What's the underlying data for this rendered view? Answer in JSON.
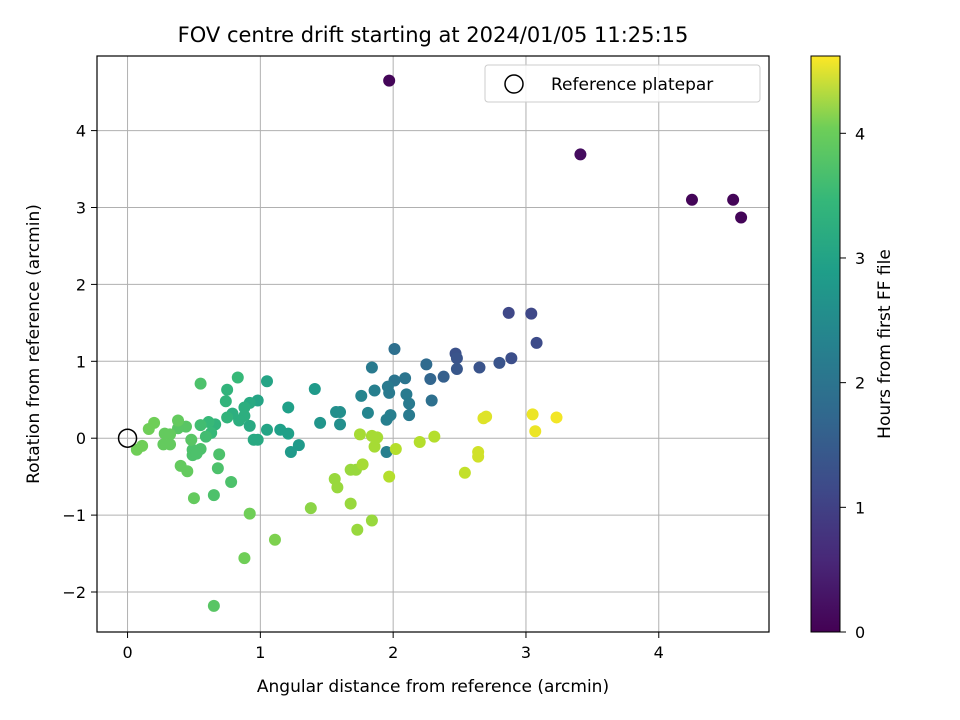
{
  "chart_data": {
    "type": "scatter",
    "title": "FOV centre drift starting at 2024/01/05 11:25:15",
    "xlabel": "Angular distance from reference (arcmin)",
    "ylabel": "Rotation from reference (arcmin)",
    "xlim": [
      -0.23,
      4.83
    ],
    "ylim": [
      -2.52,
      4.97
    ],
    "xticks": [
      0,
      1,
      2,
      3,
      4
    ],
    "yticks": [
      -2,
      -1,
      0,
      1,
      2,
      3,
      4
    ],
    "grid": true,
    "colormap": "viridis",
    "colorbar": {
      "label": "Hours from first FF file",
      "range": [
        0,
        4.62
      ],
      "ticks": [
        0,
        1,
        2,
        3,
        4
      ]
    },
    "legend": {
      "position": "top-right",
      "entries": [
        {
          "label": "Reference platepar",
          "marker": "open-circle"
        }
      ]
    },
    "reference_point": {
      "x": 0,
      "y": 0
    },
    "points": [
      {
        "x": 1.97,
        "y": 4.65,
        "h": 0.05
      },
      {
        "x": 3.41,
        "y": 3.69,
        "h": 0.15
      },
      {
        "x": 4.25,
        "y": 3.1,
        "h": 0.05
      },
      {
        "x": 4.56,
        "y": 3.1,
        "h": 0.05
      },
      {
        "x": 4.62,
        "y": 2.87,
        "h": 0.05
      },
      {
        "x": 2.87,
        "y": 1.63,
        "h": 1.0
      },
      {
        "x": 3.04,
        "y": 1.62,
        "h": 1.0
      },
      {
        "x": 3.08,
        "y": 1.24,
        "h": 1.05
      },
      {
        "x": 2.89,
        "y": 1.04,
        "h": 1.1
      },
      {
        "x": 2.8,
        "y": 0.98,
        "h": 1.2
      },
      {
        "x": 2.65,
        "y": 0.92,
        "h": 1.2
      },
      {
        "x": 2.47,
        "y": 1.1,
        "h": 1.15
      },
      {
        "x": 2.48,
        "y": 1.04,
        "h": 1.2
      },
      {
        "x": 2.48,
        "y": 0.9,
        "h": 1.25
      },
      {
        "x": 2.38,
        "y": 0.8,
        "h": 1.4
      },
      {
        "x": 2.28,
        "y": 0.77,
        "h": 1.5
      },
      {
        "x": 2.25,
        "y": 0.96,
        "h": 1.6
      },
      {
        "x": 2.29,
        "y": 0.49,
        "h": 1.7
      },
      {
        "x": 2.01,
        "y": 1.16,
        "h": 1.7
      },
      {
        "x": 2.09,
        "y": 0.78,
        "h": 1.8
      },
      {
        "x": 2.01,
        "y": 0.75,
        "h": 1.8
      },
      {
        "x": 1.96,
        "y": 0.67,
        "h": 1.9
      },
      {
        "x": 1.97,
        "y": 0.59,
        "h": 1.9
      },
      {
        "x": 2.1,
        "y": 0.57,
        "h": 1.9
      },
      {
        "x": 2.12,
        "y": 0.45,
        "h": 1.9
      },
      {
        "x": 2.12,
        "y": 0.3,
        "h": 1.9
      },
      {
        "x": 1.98,
        "y": 0.3,
        "h": 2.0
      },
      {
        "x": 1.95,
        "y": 0.24,
        "h": 2.0
      },
      {
        "x": 1.95,
        "y": -0.18,
        "h": 2.0
      },
      {
        "x": 1.84,
        "y": 0.92,
        "h": 1.9
      },
      {
        "x": 1.86,
        "y": 0.62,
        "h": 2.0
      },
      {
        "x": 1.76,
        "y": 0.55,
        "h": 2.1
      },
      {
        "x": 1.81,
        "y": 0.33,
        "h": 2.1
      },
      {
        "x": 1.57,
        "y": 0.34,
        "h": 2.3
      },
      {
        "x": 1.6,
        "y": 0.34,
        "h": 2.3
      },
      {
        "x": 1.6,
        "y": 0.18,
        "h": 2.3
      },
      {
        "x": 1.45,
        "y": 0.2,
        "h": 2.4
      },
      {
        "x": 1.41,
        "y": 0.64,
        "h": 2.5
      },
      {
        "x": 1.29,
        "y": -0.09,
        "h": 2.5
      },
      {
        "x": 1.23,
        "y": -0.18,
        "h": 2.5
      },
      {
        "x": 1.21,
        "y": 0.4,
        "h": 2.6
      },
      {
        "x": 1.21,
        "y": 0.06,
        "h": 2.6
      },
      {
        "x": 1.15,
        "y": 0.11,
        "h": 2.6
      },
      {
        "x": 1.05,
        "y": 0.11,
        "h": 2.7
      },
      {
        "x": 1.05,
        "y": 0.74,
        "h": 2.7
      },
      {
        "x": 0.98,
        "y": 0.49,
        "h": 2.7
      },
      {
        "x": 0.92,
        "y": 0.46,
        "h": 2.8
      },
      {
        "x": 0.98,
        "y": -0.02,
        "h": 2.8
      },
      {
        "x": 0.95,
        "y": -0.02,
        "h": 2.8
      },
      {
        "x": 0.92,
        "y": 0.16,
        "h": 2.8
      },
      {
        "x": 0.88,
        "y": 0.4,
        "h": 2.9
      },
      {
        "x": 0.88,
        "y": 0.29,
        "h": 2.9
      },
      {
        "x": 0.84,
        "y": 0.23,
        "h": 2.9
      },
      {
        "x": 0.79,
        "y": 0.32,
        "h": 2.9
      },
      {
        "x": 0.75,
        "y": 0.27,
        "h": 3.0
      },
      {
        "x": 0.74,
        "y": 0.48,
        "h": 3.0
      },
      {
        "x": 0.75,
        "y": 0.63,
        "h": 3.0
      },
      {
        "x": 0.83,
        "y": 0.79,
        "h": 3.1
      },
      {
        "x": 0.66,
        "y": 0.18,
        "h": 3.0
      },
      {
        "x": 0.61,
        "y": 0.21,
        "h": 3.1
      },
      {
        "x": 0.63,
        "y": 0.07,
        "h": 3.1
      },
      {
        "x": 0.55,
        "y": 0.17,
        "h": 3.2
      },
      {
        "x": 0.59,
        "y": 0.02,
        "h": 3.2
      },
      {
        "x": 0.55,
        "y": 0.71,
        "h": 3.3
      },
      {
        "x": 0.55,
        "y": -0.14,
        "h": 3.3
      },
      {
        "x": 0.49,
        "y": -0.15,
        "h": 3.3
      },
      {
        "x": 0.49,
        "y": -0.22,
        "h": 3.3
      },
      {
        "x": 0.52,
        "y": -0.2,
        "h": 3.3
      },
      {
        "x": 0.48,
        "y": -0.02,
        "h": 3.4
      },
      {
        "x": 0.44,
        "y": 0.15,
        "h": 3.4
      },
      {
        "x": 0.38,
        "y": 0.13,
        "h": 3.4
      },
      {
        "x": 0.38,
        "y": 0.23,
        "h": 3.5
      },
      {
        "x": 0.32,
        "y": 0.05,
        "h": 3.5
      },
      {
        "x": 0.28,
        "y": 0.06,
        "h": 3.5
      },
      {
        "x": 0.32,
        "y": -0.08,
        "h": 3.5
      },
      {
        "x": 0.27,
        "y": -0.08,
        "h": 3.5
      },
      {
        "x": 0.2,
        "y": 0.2,
        "h": 3.6
      },
      {
        "x": 0.16,
        "y": 0.12,
        "h": 3.6
      },
      {
        "x": 0.11,
        "y": -0.1,
        "h": 3.6
      },
      {
        "x": 0.07,
        "y": -0.15,
        "h": 3.6
      },
      {
        "x": 0.4,
        "y": -0.36,
        "h": 3.5
      },
      {
        "x": 0.45,
        "y": -0.43,
        "h": 3.5
      },
      {
        "x": 0.5,
        "y": -0.78,
        "h": 3.5
      },
      {
        "x": 0.69,
        "y": -0.21,
        "h": 3.3
      },
      {
        "x": 0.68,
        "y": -0.39,
        "h": 3.3
      },
      {
        "x": 0.78,
        "y": -0.57,
        "h": 3.3
      },
      {
        "x": 0.65,
        "y": -0.74,
        "h": 3.3
      },
      {
        "x": 0.65,
        "y": -2.18,
        "h": 3.4
      },
      {
        "x": 0.92,
        "y": -0.98,
        "h": 3.6
      },
      {
        "x": 0.88,
        "y": -1.56,
        "h": 3.6
      },
      {
        "x": 1.11,
        "y": -1.32,
        "h": 3.7
      },
      {
        "x": 1.38,
        "y": -0.91,
        "h": 3.8
      },
      {
        "x": 1.56,
        "y": -0.53,
        "h": 3.9
      },
      {
        "x": 1.58,
        "y": -0.64,
        "h": 3.9
      },
      {
        "x": 1.68,
        "y": -0.85,
        "h": 3.9
      },
      {
        "x": 1.73,
        "y": -1.19,
        "h": 3.9
      },
      {
        "x": 1.84,
        "y": -1.07,
        "h": 3.9
      },
      {
        "x": 1.68,
        "y": -0.41,
        "h": 3.9
      },
      {
        "x": 1.72,
        "y": -0.41,
        "h": 3.9
      },
      {
        "x": 1.77,
        "y": -0.34,
        "h": 4.0
      },
      {
        "x": 1.75,
        "y": 0.05,
        "h": 4.0
      },
      {
        "x": 1.84,
        "y": 0.03,
        "h": 4.0
      },
      {
        "x": 1.88,
        "y": 0.01,
        "h": 4.0
      },
      {
        "x": 1.86,
        "y": -0.11,
        "h": 4.0
      },
      {
        "x": 1.97,
        "y": -0.5,
        "h": 4.1
      },
      {
        "x": 2.02,
        "y": -0.14,
        "h": 4.1
      },
      {
        "x": 2.2,
        "y": -0.05,
        "h": 4.1
      },
      {
        "x": 2.31,
        "y": 0.02,
        "h": 4.1
      },
      {
        "x": 2.54,
        "y": -0.45,
        "h": 4.2
      },
      {
        "x": 2.64,
        "y": -0.18,
        "h": 4.3
      },
      {
        "x": 2.64,
        "y": -0.24,
        "h": 4.3
      },
      {
        "x": 2.68,
        "y": 0.26,
        "h": 4.4
      },
      {
        "x": 2.7,
        "y": 0.28,
        "h": 4.4
      },
      {
        "x": 3.05,
        "y": 0.31,
        "h": 4.5
      },
      {
        "x": 3.07,
        "y": 0.09,
        "h": 4.5
      },
      {
        "x": 3.23,
        "y": 0.27,
        "h": 4.55
      }
    ]
  }
}
